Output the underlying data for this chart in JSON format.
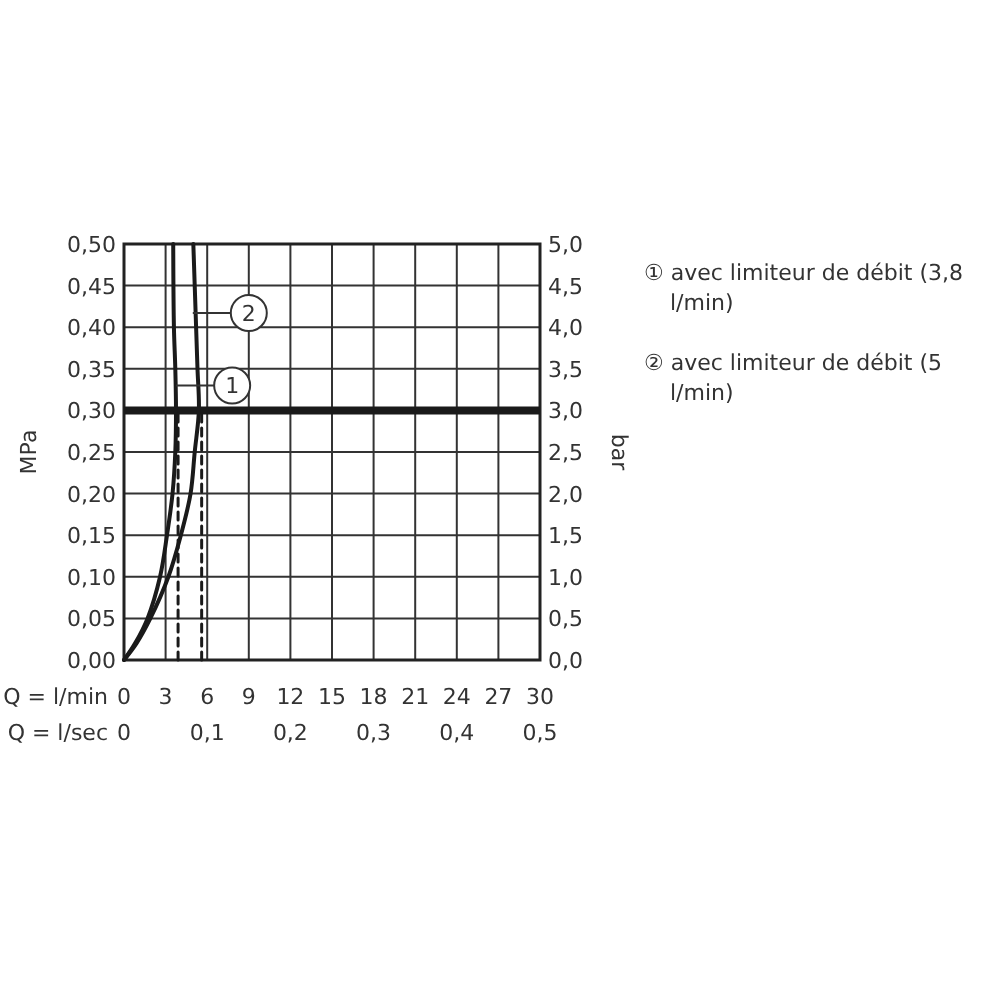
{
  "chart_data": {
    "type": "line",
    "xlabel": "Q = l/min",
    "x2label": "Q = l/sec",
    "ylabel": "MPa",
    "y2label": "bar",
    "xlim": [
      0,
      30
    ],
    "xticks": [
      0,
      3,
      6,
      9,
      12,
      15,
      18,
      21,
      24,
      27,
      30
    ],
    "x2lim": [
      0,
      0.5
    ],
    "x2ticks": [
      {
        "value": 0,
        "label": "0"
      },
      {
        "value": 0.1,
        "label": "0,1"
      },
      {
        "value": 0.2,
        "label": "0,2"
      },
      {
        "value": 0.3,
        "label": "0,3"
      },
      {
        "value": 0.4,
        "label": "0,4"
      },
      {
        "value": 0.5,
        "label": "0,5"
      }
    ],
    "ylim": [
      0,
      0.5
    ],
    "yticks": [
      {
        "value": 0,
        "label": "0,00"
      },
      {
        "value": 0.05,
        "label": "0,05"
      },
      {
        "value": 0.1,
        "label": "0,10"
      },
      {
        "value": 0.15,
        "label": "0,15"
      },
      {
        "value": 0.2,
        "label": "0,20"
      },
      {
        "value": 0.25,
        "label": "0,25"
      },
      {
        "value": 0.3,
        "label": "0,30"
      },
      {
        "value": 0.35,
        "label": "0,35"
      },
      {
        "value": 0.4,
        "label": "0,40"
      },
      {
        "value": 0.45,
        "label": "0,45"
      },
      {
        "value": 0.5,
        "label": "0,50"
      }
    ],
    "y2lim": [
      0,
      5
    ],
    "y2ticks": [
      {
        "value": 0,
        "label": "0,0"
      },
      {
        "value": 0.5,
        "label": "0,5"
      },
      {
        "value": 1,
        "label": "1,0"
      },
      {
        "value": 1.5,
        "label": "1,5"
      },
      {
        "value": 2,
        "label": "2,0"
      },
      {
        "value": 2.5,
        "label": "2,5"
      },
      {
        "value": 3,
        "label": "3,0"
      },
      {
        "value": 3.5,
        "label": "3,5"
      },
      {
        "value": 4,
        "label": "4,0"
      },
      {
        "value": 4.5,
        "label": "4,5"
      },
      {
        "value": 5,
        "label": "5,0"
      }
    ],
    "grid": true,
    "series": [
      {
        "color": "#1a1a1a",
        "x": [
          0,
          0.8,
          1.7,
          2.6,
          3.1,
          3.5,
          3.7,
          3.75,
          3.7,
          3.6,
          3.55
        ],
        "values": [
          0,
          0.02,
          0.05,
          0.1,
          0.15,
          0.2,
          0.25,
          0.3,
          0.35,
          0.4,
          0.5
        ]
      },
      {
        "color": "#1a1a1a",
        "x": [
          0,
          0.9,
          1.9,
          3.2,
          4.1,
          4.8,
          5.1,
          5.4,
          5.3,
          5.2,
          5.0
        ],
        "values": [
          0,
          0.02,
          0.05,
          0.1,
          0.15,
          0.2,
          0.25,
          0.3,
          0.35,
          0.4,
          0.5
        ]
      },
      {
        "color": "#1a1a1a",
        "line_style": "dashed",
        "x": [
          3.9,
          3.9
        ],
        "values": [
          0,
          0.3
        ]
      },
      {
        "color": "#1a1a1a",
        "line_style": "dashed",
        "x": [
          5.6,
          5.6
        ],
        "values": [
          0,
          0.3
        ]
      }
    ],
    "ref_lines": [
      {
        "axis": "y",
        "value": 0.3,
        "color": "#1a1a1a"
      }
    ],
    "annotations": [
      {
        "text": "1",
        "x": 7.8,
        "y": 0.33
      },
      {
        "text": "2",
        "x": 9.0,
        "y": 0.417
      },
      "① avec limiteur de débit (3,8 l/min)",
      "② avec limiteur de débit (5 l/min)"
    ]
  }
}
